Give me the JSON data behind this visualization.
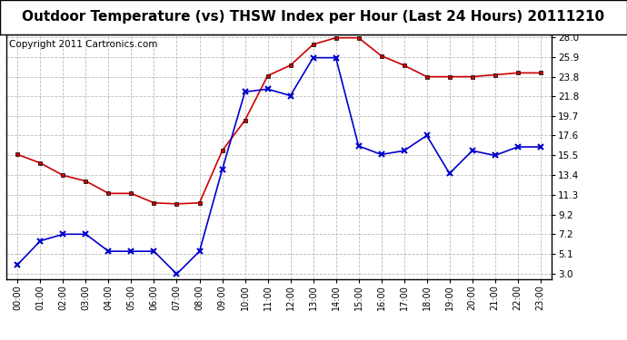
{
  "title": "Outdoor Temperature (vs) THSW Index per Hour (Last 24 Hours) 20111210",
  "copyright": "Copyright 2011 Cartronics.com",
  "x_labels": [
    "00:00",
    "01:00",
    "02:00",
    "03:00",
    "04:00",
    "05:00",
    "06:00",
    "07:00",
    "08:00",
    "09:00",
    "10:00",
    "11:00",
    "12:00",
    "13:00",
    "14:00",
    "15:00",
    "16:00",
    "17:00",
    "18:00",
    "19:00",
    "20:00",
    "21:00",
    "22:00",
    "23:00"
  ],
  "red_data": [
    15.6,
    14.7,
    13.4,
    12.8,
    11.5,
    11.5,
    10.5,
    10.4,
    10.5,
    16.0,
    19.2,
    23.9,
    25.0,
    27.2,
    27.9,
    27.9,
    26.0,
    25.0,
    23.8,
    23.8,
    23.8,
    24.0,
    24.2,
    24.2
  ],
  "blue_data": [
    4.0,
    6.5,
    7.2,
    7.2,
    5.4,
    5.4,
    5.4,
    3.0,
    5.4,
    14.0,
    22.2,
    22.5,
    21.8,
    25.8,
    25.8,
    16.5,
    15.6,
    16.0,
    17.6,
    13.6,
    16.0,
    15.5,
    16.4,
    16.4
  ],
  "red_color": "#cc0000",
  "blue_color": "#0000cc",
  "bg_color": "#ffffff",
  "grid_color": "#bbbbbb",
  "y_ticks": [
    3.0,
    5.1,
    7.2,
    9.2,
    11.3,
    13.4,
    15.5,
    17.6,
    19.7,
    21.8,
    23.8,
    25.9,
    28.0
  ],
  "y_min": 3.0,
  "y_max": 28.0,
  "title_fontsize": 11,
  "copyright_fontsize": 7.5
}
